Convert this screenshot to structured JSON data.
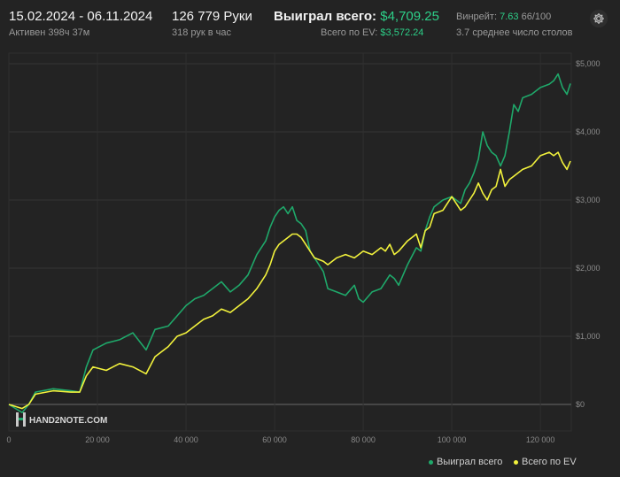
{
  "header": {
    "date_range": "15.02.2024 - 06.11.2024",
    "active_time": "Активен 398ч 37м",
    "hands": "126 779 Руки",
    "hands_per_hour": "318 рук в час",
    "won_total_label": "Выиграл всего:",
    "won_total_value": "$4,709.25",
    "ev_label": "Всего по EV:",
    "ev_value": "$3,572.24",
    "winrate_label": "Винрейт:",
    "winrate_value": "7.63",
    "winrate_suffix": "66/100",
    "tables": "3.7 среднее число столов"
  },
  "icons": {
    "settings": "gear-icon",
    "logo": "hand2note-logo-icon"
  },
  "watermark": "HAND2NOTE.COM",
  "colors": {
    "background": "#232323",
    "won": "#1fa86a",
    "ev": "#f2f23c",
    "accent": "#2dcf88"
  },
  "chart_data": {
    "type": "line",
    "xlim": [
      0,
      126779
    ],
    "ylim": [
      -100,
      5200
    ],
    "x_ticks": [
      0,
      20000,
      40000,
      60000,
      80000,
      100000,
      120000
    ],
    "x_tick_labels": [
      "0",
      "20 000",
      "40 000",
      "60 000",
      "80 000",
      "100 000",
      "120 000"
    ],
    "y_ticks": [
      0,
      1000,
      2000,
      3000,
      4000,
      5000
    ],
    "y_tick_labels": [
      "$0",
      "$1,000",
      "$2,000",
      "$3,000",
      "$4,000",
      "$5,000"
    ],
    "y_axis_position": "right",
    "grid": true,
    "legend": "bottom-right",
    "series": [
      {
        "name": "Выиграл всего",
        "color": "#1fa86a",
        "x": [
          0,
          3000,
          4500,
          6000,
          10000,
          14000,
          16000,
          17500,
          19000,
          22000,
          25000,
          28000,
          31000,
          33000,
          36000,
          38000,
          40000,
          42000,
          44000,
          46000,
          48000,
          50000,
          52000,
          54000,
          56000,
          58000,
          59000,
          60000,
          61000,
          62000,
          63000,
          64000,
          65000,
          66000,
          67000,
          68000,
          69000,
          71000,
          72000,
          74000,
          76000,
          78000,
          79000,
          80000,
          82000,
          84000,
          85000,
          86000,
          87000,
          88000,
          90000,
          92000,
          93000,
          94000,
          95000,
          96000,
          98000,
          100000,
          102000,
          103000,
          104000,
          105000,
          106000,
          107000,
          108000,
          109000,
          110000,
          111000,
          112000,
          113000,
          114000,
          115000,
          116000,
          118000,
          120000,
          122000,
          123000,
          124000,
          125000,
          126000,
          126779
        ],
        "values": [
          0,
          -120,
          0,
          180,
          230,
          200,
          180,
          550,
          800,
          900,
          950,
          1050,
          800,
          1100,
          1150,
          1300,
          1450,
          1550,
          1600,
          1700,
          1800,
          1650,
          1750,
          1900,
          2200,
          2400,
          2600,
          2750,
          2850,
          2900,
          2800,
          2900,
          2700,
          2650,
          2550,
          2250,
          2150,
          1950,
          1700,
          1650,
          1600,
          1750,
          1550,
          1500,
          1650,
          1700,
          1800,
          1900,
          1850,
          1750,
          2050,
          2300,
          2250,
          2550,
          2750,
          2900,
          3000,
          3050,
          2950,
          3150,
          3250,
          3400,
          3600,
          4000,
          3800,
          3700,
          3650,
          3500,
          3650,
          4000,
          4400,
          4300,
          4500,
          4550,
          4650,
          4700,
          4750,
          4850,
          4650,
          4550,
          4709
        ]
      },
      {
        "name": "Всего по EV",
        "color": "#f2f23c",
        "x": [
          0,
          3000,
          4500,
          6000,
          10000,
          14000,
          16000,
          17500,
          19000,
          22000,
          25000,
          28000,
          31000,
          33000,
          36000,
          38000,
          40000,
          42000,
          44000,
          46000,
          48000,
          50000,
          52000,
          54000,
          56000,
          58000,
          59000,
          60000,
          61000,
          62000,
          63000,
          64000,
          65000,
          66000,
          67000,
          68000,
          69000,
          71000,
          72000,
          74000,
          76000,
          78000,
          79000,
          80000,
          82000,
          84000,
          85000,
          86000,
          87000,
          88000,
          90000,
          92000,
          93000,
          94000,
          95000,
          96000,
          98000,
          100000,
          102000,
          103000,
          104000,
          105000,
          106000,
          107000,
          108000,
          109000,
          110000,
          111000,
          112000,
          113000,
          114000,
          115000,
          116000,
          118000,
          120000,
          122000,
          123000,
          124000,
          125000,
          126000,
          126779
        ],
        "values": [
          0,
          -60,
          0,
          150,
          200,
          180,
          180,
          420,
          550,
          500,
          600,
          550,
          450,
          700,
          850,
          1000,
          1050,
          1150,
          1250,
          1300,
          1400,
          1350,
          1450,
          1550,
          1700,
          1900,
          2050,
          2250,
          2350,
          2400,
          2450,
          2500,
          2500,
          2450,
          2350,
          2250,
          2150,
          2100,
          2050,
          2150,
          2200,
          2150,
          2200,
          2250,
          2200,
          2300,
          2250,
          2350,
          2200,
          2250,
          2400,
          2500,
          2300,
          2550,
          2600,
          2800,
          2850,
          3050,
          2850,
          2900,
          3000,
          3100,
          3250,
          3100,
          3000,
          3150,
          3200,
          3450,
          3200,
          3300,
          3350,
          3400,
          3450,
          3500,
          3650,
          3700,
          3650,
          3700,
          3550,
          3450,
          3572
        ]
      }
    ]
  }
}
